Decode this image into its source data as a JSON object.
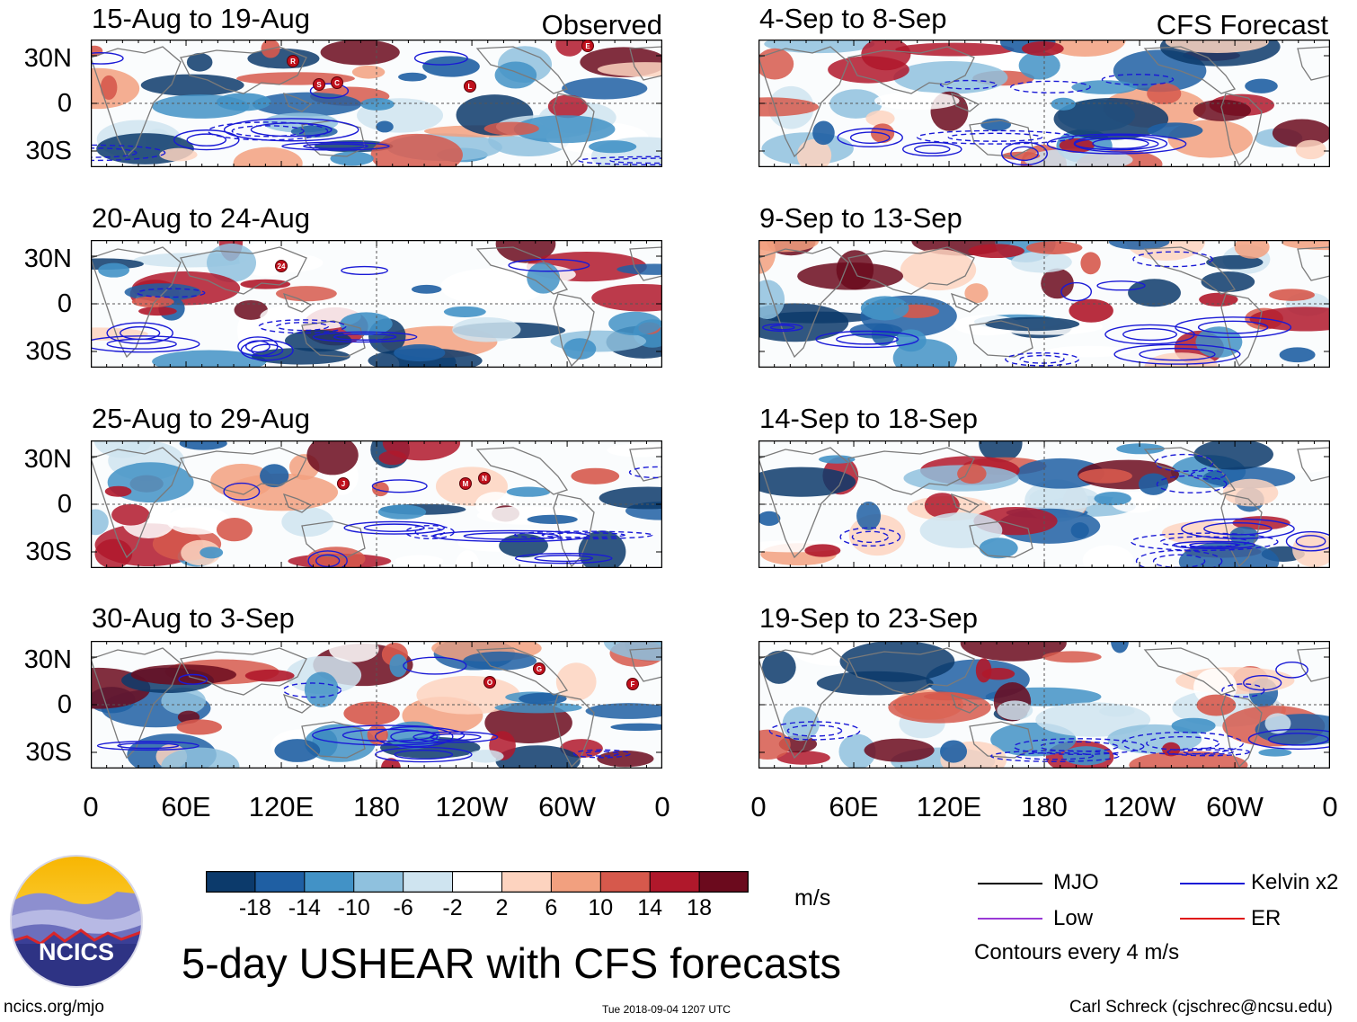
{
  "panels": {
    "left": [
      {
        "title": "15-Aug to 19-Aug",
        "tag": "Observed"
      },
      {
        "title": "20-Aug to 24-Aug",
        "tag": ""
      },
      {
        "title": "25-Aug to 29-Aug",
        "tag": ""
      },
      {
        "title": "30-Aug to 3-Sep",
        "tag": ""
      }
    ],
    "right": [
      {
        "title": "4-Sep to 8-Sep",
        "tag": "CFS Forecast"
      },
      {
        "title": "9-Sep to 13-Sep",
        "tag": ""
      },
      {
        "title": "14-Sep to 18-Sep",
        "tag": ""
      },
      {
        "title": "19-Sep to 23-Sep",
        "tag": ""
      }
    ]
  },
  "axes": {
    "lat_labels": [
      "30N",
      "0",
      "30S"
    ],
    "lon_labels": [
      "0",
      "60E",
      "120E",
      "180",
      "120W",
      "60W",
      "0"
    ]
  },
  "storm_markers": {
    "p0": [
      "R",
      "S",
      "C",
      "L",
      "E"
    ],
    "p1": [
      "24"
    ],
    "p2": [
      "J",
      "M",
      "N"
    ],
    "p3": [
      "G",
      "O",
      "F"
    ]
  },
  "colorbar": {
    "labels": [
      "-18",
      "-14",
      "-10",
      "-6",
      "-2",
      "2",
      "6",
      "10",
      "14",
      "18"
    ],
    "units": "m/s",
    "colors": [
      "#0c3a6b",
      "#1f5fa3",
      "#4292c6",
      "#8fc1de",
      "#cfe4f0",
      "#ffffff",
      "#fdd3bf",
      "#f2a07f",
      "#d6594c",
      "#b0182b",
      "#6b0a1d"
    ]
  },
  "legend": {
    "items": [
      {
        "label": "MJO",
        "color": "#000000"
      },
      {
        "label": "Kelvin x2",
        "color": "#1a1ad6"
      },
      {
        "label": "Low",
        "color": "#9a3ad6"
      },
      {
        "label": "ER",
        "color": "#e01010"
      }
    ],
    "note": "Contours every 4 m/s"
  },
  "title": "5-day USHEAR with CFS forecasts",
  "logo": {
    "text": "NCICS"
  },
  "footer": {
    "left": "ncics.org/mjo",
    "center": "Tue 2018-09-04 1207 UTC",
    "right": "Carl Schreck (cjschrec@ncsu.edu)"
  }
}
